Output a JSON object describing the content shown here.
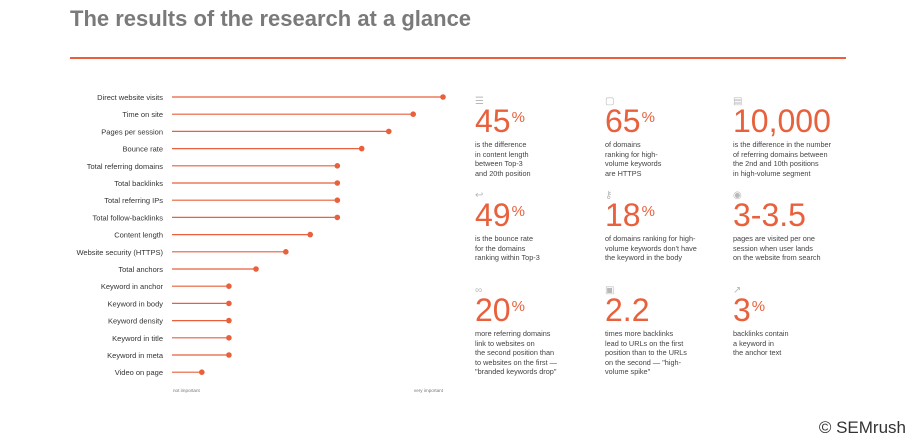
{
  "title": "The results of the research at a glance",
  "colors": {
    "accent": "#e8603c",
    "text": "#333333",
    "title": "#7a7a7a",
    "icon": "#b9b9b9"
  },
  "chart_data": {
    "type": "bar",
    "orientation": "horizontal",
    "style": "lollipop",
    "categories": [
      "Direct website visits",
      "Time on site",
      "Pages per session",
      "Bounce rate",
      "Total referring domains",
      "Total backlinks",
      "Total referring IPs",
      "Total follow-backlinks",
      "Content length",
      "Website security (HTTPS)",
      "Total anchors",
      "Keyword in anchor",
      "Keyword in body",
      "Keyword density",
      "Keyword in title",
      "Keyword in meta",
      "Video on page"
    ],
    "values": [
      100,
      89,
      80,
      70,
      61,
      61,
      61,
      61,
      51,
      42,
      31,
      21,
      21,
      21,
      21,
      21,
      11
    ],
    "xlabel_left": "not important",
    "xlabel_right": "very important",
    "xlim": [
      0,
      100
    ]
  },
  "stats": [
    {
      "icon": "list-icon",
      "value": "45",
      "suffix": "%",
      "desc": "is the difference\nin content length\nbetween Top-3\nand 20th position"
    },
    {
      "icon": "lock-icon",
      "value": "65",
      "suffix": "%",
      "desc": "of domains\nranking for high-\nvolume keywords\nare HTTPS"
    },
    {
      "icon": "stack-icon",
      "value": "10,000",
      "suffix": "",
      "desc": "is the difference in the number\nof referring domains between\nthe 2nd and 10th positions\nin high-volume segment"
    },
    {
      "icon": "return-icon",
      "value": "49",
      "suffix": "%",
      "desc": "is the bounce rate\nfor the domains\nranking within Top-3"
    },
    {
      "icon": "key-icon",
      "value": "18",
      "suffix": "%",
      "desc": "of domains ranking for high-\nvolume keywords don't have\nthe keyword in the body"
    },
    {
      "icon": "eye-icon",
      "value": "3-3.5",
      "suffix": "",
      "desc": "pages are visited per one\nsession when user lands\non the website from search"
    },
    {
      "icon": "link-icon",
      "value": "20",
      "suffix": "%",
      "desc": "more referring domains\nlink to websites on\nthe second position than\nto websites on the first —\n\"branded keywords drop\""
    },
    {
      "icon": "window-icon",
      "value": "2.2",
      "suffix": "",
      "desc": "times more backlinks\nlead to URLs on the first\nposition than to the URLs\non the second — \"high-\nvolume spike\""
    },
    {
      "icon": "arrow-icon",
      "value": "3",
      "suffix": "%",
      "desc": "backlinks contain\na keyword in\nthe anchor text"
    }
  ],
  "copyright": "© SEMrush"
}
